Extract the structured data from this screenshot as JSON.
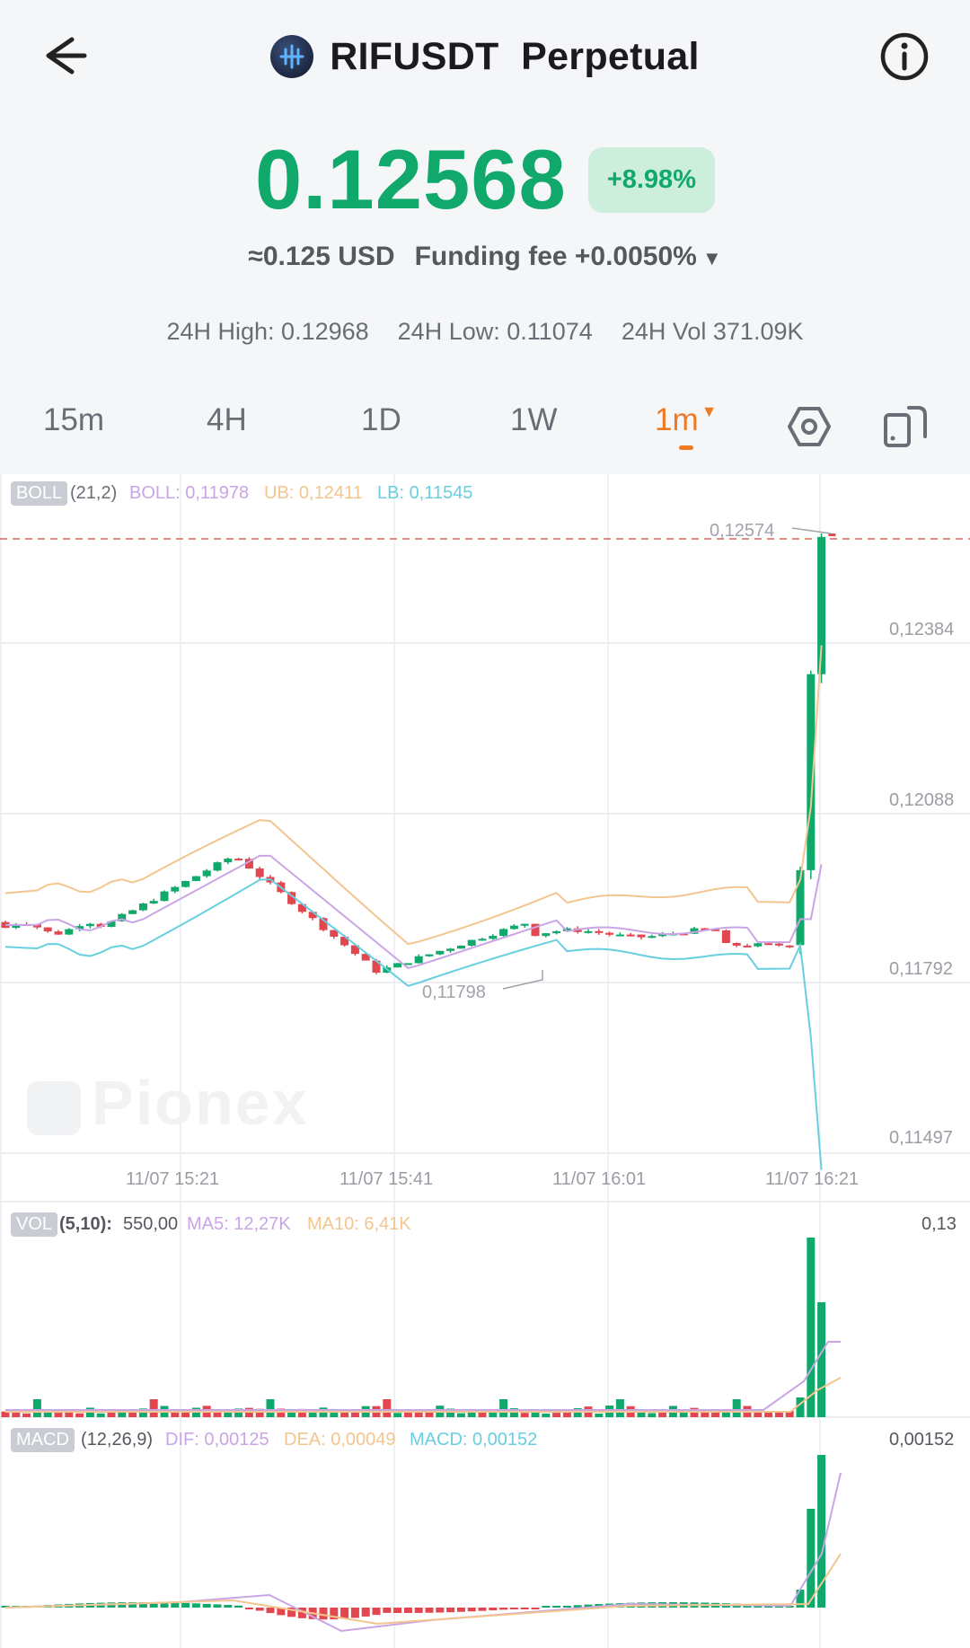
{
  "header": {
    "title": "RIFUSDT  Perpetual",
    "back_icon": "arrow-left-icon",
    "info_icon": "info-circle-icon",
    "coin_icon": "rif-coin-icon"
  },
  "ticker": {
    "price": "0.12568",
    "change": "+8.98%",
    "usd_value": "≈0.125 USD",
    "funding_fee": "Funding fee +0.0050%",
    "high": "24H High: 0.12968",
    "low": "24H Low: 0.11074",
    "vol": "24H Vol 371.09K"
  },
  "tabs": [
    {
      "label": "15m"
    },
    {
      "label": "4H"
    },
    {
      "label": "1D"
    },
    {
      "label": "1W"
    },
    {
      "label": "1m",
      "active": true
    }
  ],
  "tab_icons": [
    "settings-hexagon-icon",
    "fullscreen-rotate-icon"
  ],
  "colors": {
    "up": "#10a86b",
    "down": "#e2464f",
    "accent": "#ee7b24",
    "boll_mid": "#c9a5e6",
    "boll_ub": "#f3c58f",
    "boll_lb": "#68cfe0"
  },
  "boll_legend": {
    "tag": "BOLL",
    "params": "(21,2)",
    "boll": "BOLL: 0,11978",
    "ub": "UB: 0,12411",
    "lb": "LB: 0,11545"
  },
  "price_axis": [
    "0,12384",
    "0,12088",
    "0,11792",
    "0,11497"
  ],
  "max_label": "0,12574",
  "min_label": "0,11798",
  "time_axis": [
    "11/07 15:21",
    "11/07 15:41",
    "11/07 16:01",
    "11/07 16:21"
  ],
  "watermark": "Pionex",
  "vol_legend": {
    "tag": "VOL",
    "params": "(5,10):",
    "value": "550,00",
    "ma5": "MA5: 12,27K",
    "ma10": "MA10: 6,41K",
    "axis_max": "0,13"
  },
  "macd_legend": {
    "tag": "MACD",
    "params": "(12,26,9)",
    "dif": "DIF: 0,00125",
    "dea": "DEA: 0,00049",
    "macd": "MACD: 0,00152",
    "axis_max": "0,00152"
  }
}
